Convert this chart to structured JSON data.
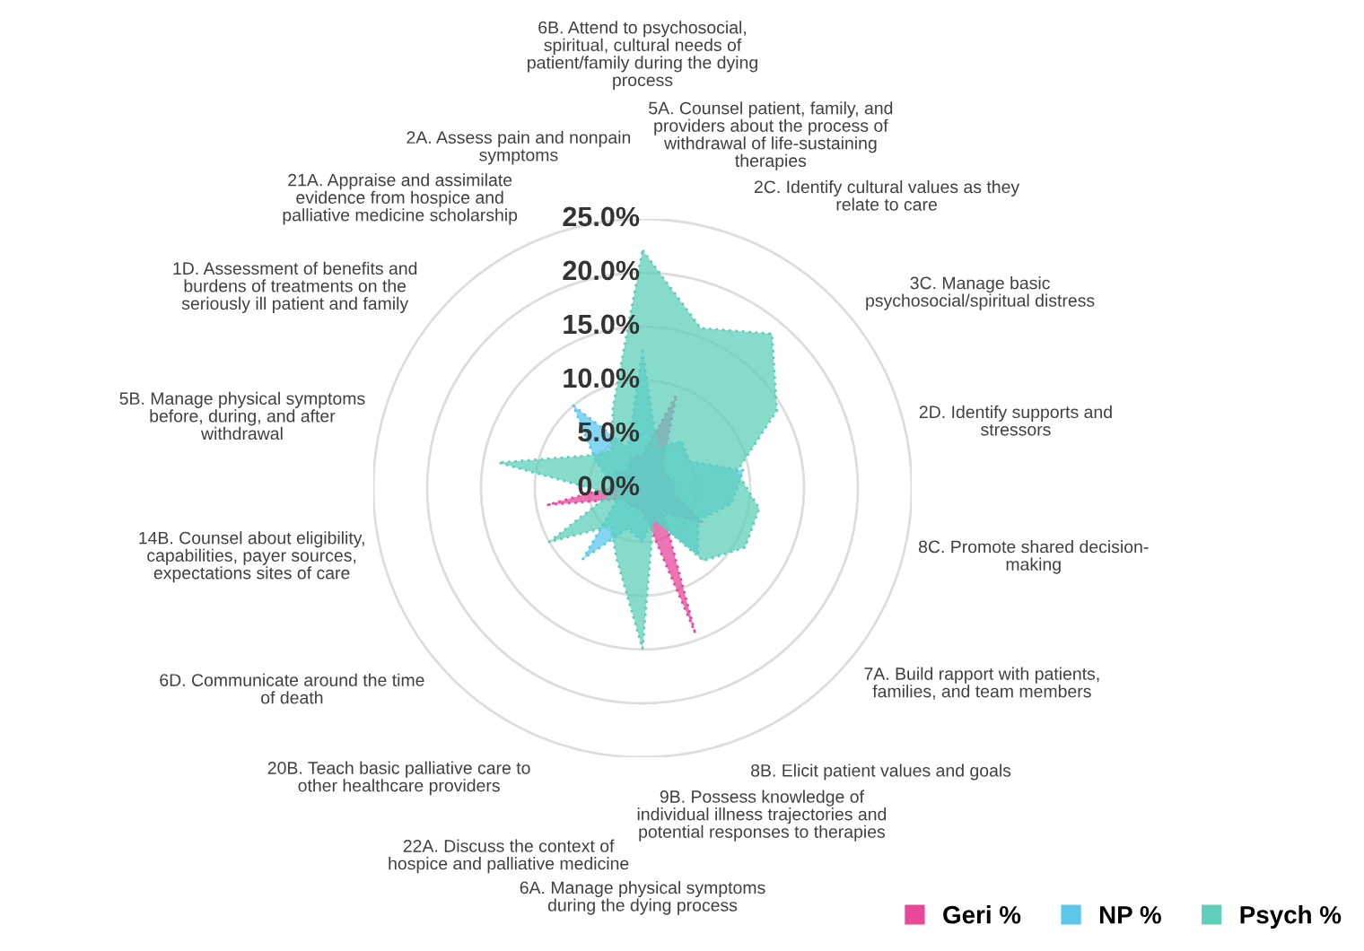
{
  "chart_data": {
    "type": "radar",
    "categories": [
      "6B. Attend to psychosocial,\nspiritual, cultural needs of\npatient/family during the dying\nprocess",
      "5A. Counsel patient, family, and\nproviders about the process of\nwithdrawal of life-sustaining\ntherapies",
      "2C. Identify cultural values as they\nrelate to care",
      "3C. Manage basic\npsychosocial/spiritual distress",
      "2D. Identify supports and\nstressors",
      "8C. Promote shared decision-\nmaking",
      "7A. Build rapport with patients,\nfamilies, and team members",
      "8B. Elicit patient values and goals",
      "9B. Possess knowledge of\nindividual illness trajectories and\npotential responses to therapies",
      "6A. Manage physical symptoms\nduring the dying process",
      "22A. Discuss the context of\nhospice and palliative medicine",
      "20B. Teach basic palliative care to\nother healthcare providers",
      "6D. Communicate around the time\nof death",
      "14B. Counsel about eligibility,\ncapabilities, payer sources,\nexpectations sites of care",
      "5B. Manage physical symptoms\nbefore, during, and after\nwithdrawal",
      "1D. Assessment of benefits and\nburdens of treatments on the\nseriously ill patient and family",
      "21A. Appraise and assimilate\nevidence from hospice and\npalliative medicine scholarship",
      "2A. Assess pain and nonpain\nsymptoms"
    ],
    "series": [
      {
        "name": "Geri %",
        "color": "#e8479a",
        "values": [
          3,
          9.2,
          3,
          2.5,
          3,
          3,
          6.5,
          3,
          14.2,
          2,
          2,
          2,
          2,
          8.9,
          2,
          3,
          2,
          3
        ]
      },
      {
        "name": "NP %",
        "color": "#5bc7ec",
        "values": [
          12.8,
          4,
          5.7,
          5,
          9.5,
          8.4,
          6,
          8,
          3,
          5,
          4,
          8.6,
          3,
          2,
          3,
          5,
          10,
          4
        ]
      },
      {
        "name": "Psych %",
        "color": "#5fcfb9",
        "values": [
          22.1,
          15.8,
          18.7,
          14.4,
          8.9,
          11,
          11,
          8.8,
          3,
          14.9,
          7,
          4.6,
          10,
          3,
          13.6,
          6,
          4.5,
          8
        ]
      }
    ],
    "ylim": [
      0,
      25
    ],
    "yticks": [
      {
        "value": 0,
        "label": "0.0%"
      },
      {
        "value": 5,
        "label": "5.0%"
      },
      {
        "value": 10,
        "label": "10.0%"
      },
      {
        "value": 15,
        "label": "15.0%"
      },
      {
        "value": 20,
        "label": "20.0%"
      },
      {
        "value": 25,
        "label": "25.0%"
      }
    ],
    "grid": true,
    "legend": "bottom right",
    "line_style": "dotted"
  }
}
